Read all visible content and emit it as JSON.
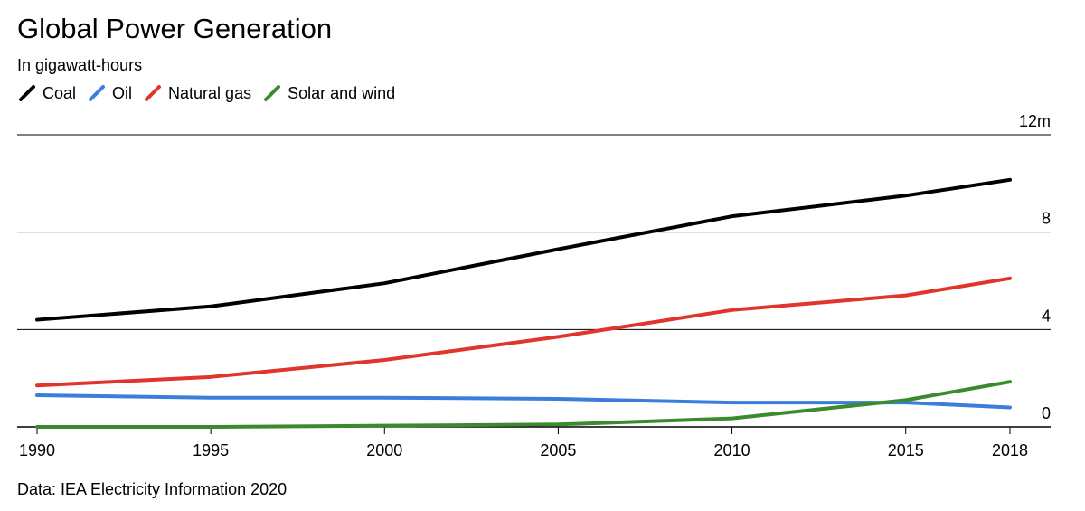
{
  "title": "Global Power Generation",
  "subtitle": "In gigawatt-hours",
  "source": "Data: IEA Electricity Information 2020",
  "chart_data": {
    "type": "line",
    "title": "Global Power Generation",
    "subtitle": "In gigawatt-hours",
    "x": [
      1990,
      1995,
      2000,
      2005,
      2010,
      2015,
      2018
    ],
    "x_tick_labels": [
      "1990",
      "1995",
      "2000",
      "2005",
      "2010",
      "2015",
      "2018"
    ],
    "y_ticks": [
      0,
      4,
      8,
      12
    ],
    "y_tick_labels": [
      "0",
      "4",
      "8",
      "12m"
    ],
    "ylim": [
      0,
      12
    ],
    "grid": true,
    "legend_position": "top-left",
    "series": [
      {
        "name": "Coal",
        "color": "#000000",
        "values": [
          4.4,
          4.95,
          5.9,
          7.3,
          8.65,
          9.5,
          10.15
        ]
      },
      {
        "name": "Oil",
        "color": "#3b7ddd",
        "values": [
          1.3,
          1.2,
          1.2,
          1.15,
          1.0,
          1.0,
          0.8
        ]
      },
      {
        "name": "Natural gas",
        "color": "#e0352b",
        "values": [
          1.7,
          2.05,
          2.75,
          3.7,
          4.8,
          5.4,
          6.1
        ]
      },
      {
        "name": "Solar and wind",
        "color": "#3a8a2e",
        "values": [
          0.0,
          0.0,
          0.05,
          0.1,
          0.35,
          1.1,
          1.85
        ]
      }
    ]
  }
}
